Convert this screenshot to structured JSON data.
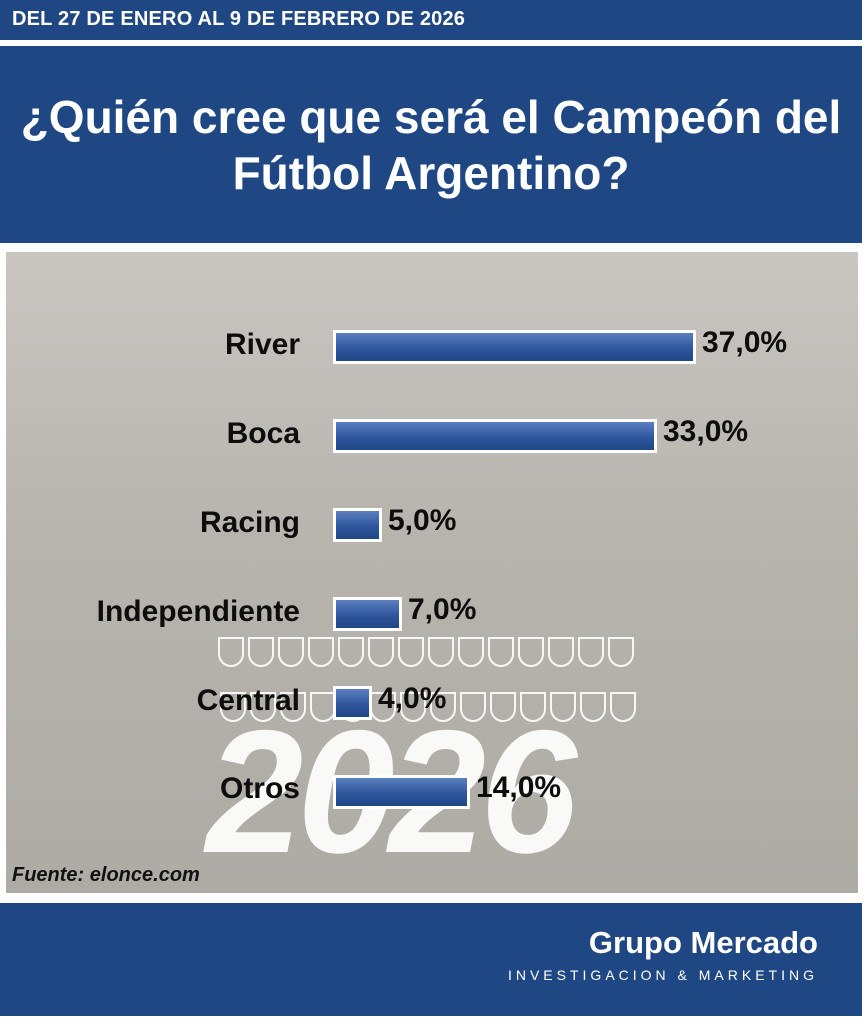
{
  "header": {
    "date_range": "DEL 27 DE ENERO AL 9 DE FEBRERO DE 2026"
  },
  "title": "¿Quién cree que será el Campeón del Fútbol Argentino?",
  "watermark": "2026",
  "source": "Fuente: elonce.com",
  "footer": {
    "brand": "Grupo Mercado",
    "tagline": "INVESTIGACION & MARKETING"
  },
  "colors": {
    "accent": "#1f4784",
    "bar": "#2f569e",
    "panel": "#bdbab4"
  },
  "chart_data": {
    "type": "bar",
    "orientation": "horizontal",
    "categories": [
      "River",
      "Boca",
      "Racing",
      "Independiente",
      "Central",
      "Otros"
    ],
    "values": [
      37.0,
      33.0,
      5.0,
      7.0,
      4.0,
      14.0
    ],
    "value_labels": [
      "37,0%",
      "33,0%",
      "5,0%",
      "7,0%",
      "4,0%",
      "14,0%"
    ],
    "title": "¿Quién cree que será el Campeón del Fútbol Argentino?",
    "xlim": [
      0,
      37
    ],
    "grid": false,
    "legend": "none"
  }
}
